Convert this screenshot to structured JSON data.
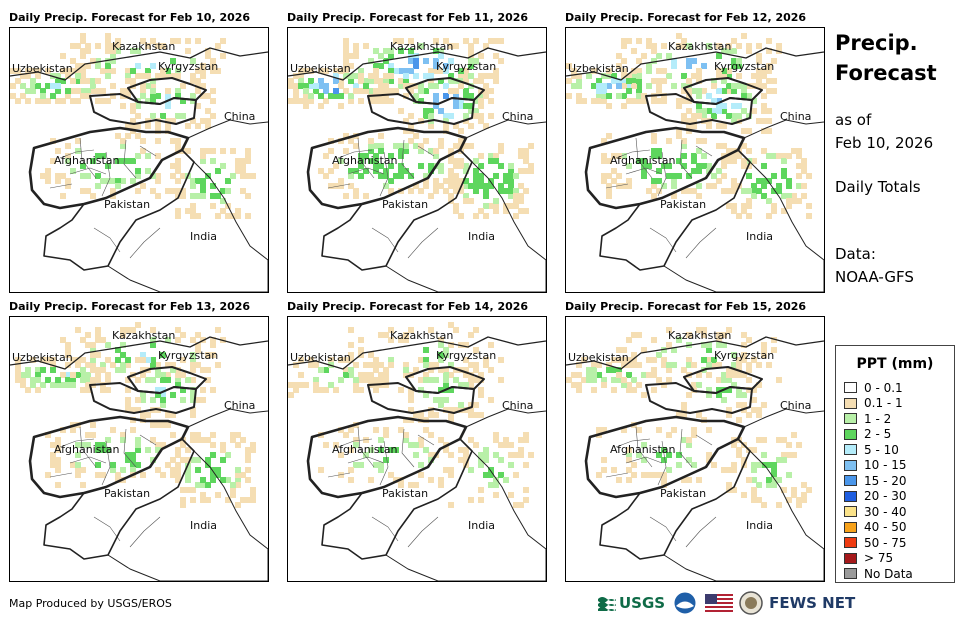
{
  "panels": [
    {
      "title": "Daily Precip. Forecast for Feb 10, 2026",
      "intensity": 2
    },
    {
      "title": "Daily Precip. Forecast for Feb 11, 2026",
      "intensity": 4
    },
    {
      "title": "Daily Precip. Forecast for Feb 12, 2026",
      "intensity": 3
    },
    {
      "title": "Daily Precip. Forecast for Feb 13, 2026",
      "intensity": 2
    },
    {
      "title": "Daily Precip. Forecast for Feb 14, 2026",
      "intensity": 1
    },
    {
      "title": "Daily Precip. Forecast for Feb 15, 2026",
      "intensity": 1
    }
  ],
  "map_labels": {
    "kazakhstan": "Kazakhstan",
    "uzbekistan": "Uzbekistan",
    "kyrgyzstan": "Kyrgyzstan",
    "china": "China",
    "afghanistan": "Afghanistan",
    "pakistan": "Pakistan",
    "india": "India"
  },
  "sidebar": {
    "title": "Precip.\nForecast",
    "as_of": "as of\nFeb 10, 2026",
    "totals": "Daily Totals",
    "data_source": "Data:\nNOAA-GFS"
  },
  "legend": {
    "title": "PPT (mm)",
    "items": [
      {
        "label": "0 - 0.1",
        "color": "#ffffff"
      },
      {
        "label": "0.1 - 1",
        "color": "#f5deb3"
      },
      {
        "label": "1 - 2",
        "color": "#b8f0a8"
      },
      {
        "label": "2 - 5",
        "color": "#5ed65e"
      },
      {
        "label": "5 - 10",
        "color": "#b4ecfa"
      },
      {
        "label": "10 - 15",
        "color": "#7ec0f2"
      },
      {
        "label": "15 - 20",
        "color": "#4a96ea"
      },
      {
        "label": "20 - 30",
        "color": "#1f5ee0"
      },
      {
        "label": "30 - 40",
        "color": "#fbe38a"
      },
      {
        "label": "40 - 50",
        "color": "#f7a21b"
      },
      {
        "label": "50 - 75",
        "color": "#ef3b11"
      },
      {
        "label": "> 75",
        "color": "#a5191b"
      },
      {
        "label": "No Data",
        "color": "#9a9a9a"
      }
    ]
  },
  "footer": {
    "credit": "Map Produced by USGS/EROS",
    "usgs": "USGS",
    "fews": "FEWS NET"
  }
}
